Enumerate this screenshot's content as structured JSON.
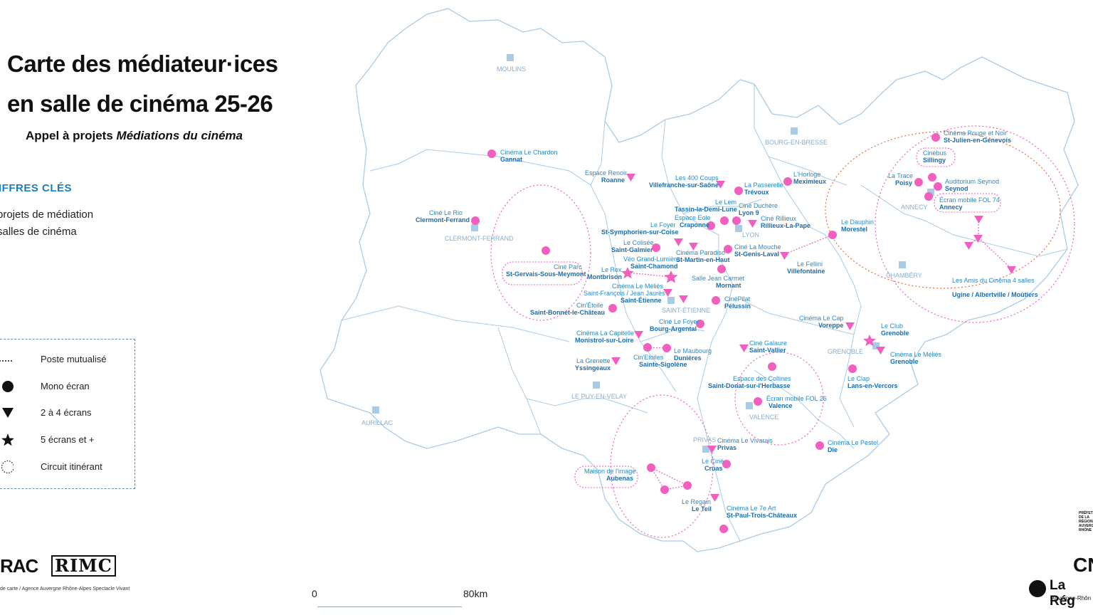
{
  "title_line1": "Carte des médiateur·ices",
  "title_line2": "en salle de cinéma 25-26",
  "subtitle_prefix": "Appel à projets ",
  "subtitle_italic": "Médiations du cinéma",
  "key_figures": {
    "heading": "IFFRES CLÉS",
    "line1": "projets de médiation",
    "line2": "salles de cinéma"
  },
  "legend": {
    "items": [
      {
        "label": "Poste mutualisé",
        "icon": "dotted-line-icon"
      },
      {
        "label": "Mono écran",
        "icon": "circle-icon"
      },
      {
        "label": "2 à 4 écrans",
        "icon": "triangle-icon"
      },
      {
        "label": "5 écrans et +",
        "icon": "star-icon"
      },
      {
        "label": "Circuit itinérant",
        "icon": "dashed-circle-icon"
      }
    ]
  },
  "logos": {
    "rac": "RAC",
    "rmc": "RIMC",
    "cn": "CN",
    "region": "La Rég",
    "region_sub": "Auvergne-Rhôn",
    "prefet": "PRÉFET DE LA RÉGION AUVERGNE RHÔNE"
  },
  "credit": "de carte / Agence Auvergne Rhône-Alpes Spectacle Vivant",
  "scale": {
    "start": "0",
    "end": "80km"
  },
  "colors": {
    "marker": "#f35fbf",
    "border": "#a9cbe6",
    "prefecture": "#a9cbe6",
    "label_name": "#2a8ac9",
    "label_city": "#1a6eb0"
  },
  "prefectures": [
    "MOULINS",
    "BOURG-EN-BRESSE",
    "CLERMONT-FERRAND",
    "LYON",
    "ANNECY",
    "CHAMBÉRY",
    "SAINT-ÉTIENNE",
    "GRENOBLE",
    "LE PUY-EN-VELAY",
    "AURILLAC",
    "VALENCE",
    "PRIVAS"
  ],
  "venues": [
    {
      "name": "Cinéma Le Chardon",
      "city": "Gannat",
      "marker": "circle"
    },
    {
      "name": "Ciné Le Rio",
      "city": "Clermont-Ferrand",
      "marker": "circle"
    },
    {
      "name": "Ciné Parc",
      "city": "St-Gervais-Sous-Meymont",
      "marker": "circle"
    },
    {
      "name": "Espace Renoir",
      "city": "Roanne",
      "marker": "triangle"
    },
    {
      "name": "Les 400 Coups",
      "city": "Villefranche-sur-Saône",
      "marker": "triangle"
    },
    {
      "name": "La Passerelle",
      "city": "Trévoux",
      "marker": "circle"
    },
    {
      "name": "L'Horloge",
      "city": "Meximieux",
      "marker": "circle"
    },
    {
      "name": "Le Lem",
      "city": "Tassin-la-Demi-Lune",
      "marker": "circle"
    },
    {
      "name": "Ciné Duchère",
      "city": "Lyon 9",
      "marker": "circle"
    },
    {
      "name": "Espace Eole",
      "city": "Craponne",
      "marker": "circle"
    },
    {
      "name": "Ciné Rillieux",
      "city": "Rillieux-La-Pape",
      "marker": "triangle"
    },
    {
      "name": "Le Foyer",
      "city": "St-Symphorien-sur-Coise",
      "marker": "triangle"
    },
    {
      "name": "Le Colisée",
      "city": "Saint-Galmier",
      "marker": "circle"
    },
    {
      "name": "Ciné La Mouche",
      "city": "St-Genis-Laval",
      "marker": "circle"
    },
    {
      "name": "Cinéma Paradiso",
      "city": "St-Martin-en-Haut",
      "marker": "triangle"
    },
    {
      "name": "Véo Grand-Lumière",
      "city": "Saint-Chamond",
      "marker": "star"
    },
    {
      "name": "Le Rex",
      "city": "Montbrison",
      "marker": "star"
    },
    {
      "name": "Le Fellini",
      "city": "Villefontaine",
      "marker": "triangle"
    },
    {
      "name": "Le Dauphin",
      "city": "Morestel",
      "marker": "circle"
    },
    {
      "name": "Salle Jean Carmet",
      "city": "Mornant",
      "marker": "circle"
    },
    {
      "name": "Cinéma Le Méliès",
      "city": "",
      "marker": "triangle"
    },
    {
      "name": "Saint-François / Jean Jaurès",
      "city": "Saint-Étienne",
      "marker": "triangle"
    },
    {
      "name": "Cin'Étoile",
      "city": "Saint-Bonnet-le-Château",
      "marker": "circle"
    },
    {
      "name": "CinéPilat",
      "city": "Pélussin",
      "marker": "circle"
    },
    {
      "name": "Ciné Le Foyer",
      "city": "Bourg-Argental",
      "marker": "circle"
    },
    {
      "name": "Cinéma La Capitelle",
      "city": "Monistrol-sur-Loire",
      "marker": "triangle"
    },
    {
      "name": "La Grenette",
      "city": "Yssingeaux",
      "marker": "triangle"
    },
    {
      "name": "Cin'Etoiles",
      "city": "Sainte-Sigolène",
      "marker": "circle"
    },
    {
      "name": "Le Maubourg",
      "city": "Dunières",
      "marker": "circle"
    },
    {
      "name": "Ciné Galaure",
      "city": "Saint-Vallier",
      "marker": "triangle"
    },
    {
      "name": "Espace des Collines",
      "city": "Saint-Donat-sur-l'Herbasse",
      "marker": "circle"
    },
    {
      "name": "Écran mobile FOL 26",
      "city": "Valence",
      "marker": "circle"
    },
    {
      "name": "Cinéma Le Cap",
      "city": "Voreppe",
      "marker": "triangle"
    },
    {
      "name": "Le Club",
      "city": "Grenoble",
      "marker": "star"
    },
    {
      "name": "Cinéma Le Méliès",
      "city": "Grenoble",
      "marker": "triangle"
    },
    {
      "name": "Le Clap",
      "city": "Lans-en-Vercors",
      "marker": "circle"
    },
    {
      "name": "Cinéma Le Pestel",
      "city": "Die",
      "marker": "circle"
    },
    {
      "name": "Cinéma Le Vivarais",
      "city": "Privas",
      "marker": "triangle"
    },
    {
      "name": "Le Ciné",
      "city": "Cruas",
      "marker": "circle"
    },
    {
      "name": "Maison de l'image",
      "city": "Aubenas",
      "marker": "circle"
    },
    {
      "name": "Le Regain",
      "city": "Le Teil",
      "marker": "triangle"
    },
    {
      "name": "Cinéma Le 7e Art",
      "city": "St-Paul-Trois-Châteaux",
      "marker": "circle"
    },
    {
      "name": "Cinéma Rouge et Noir",
      "city": "St-Julien-en-Genevois",
      "marker": "circle"
    },
    {
      "name": "Cinébus",
      "city": "Sillingy",
      "marker": "circle"
    },
    {
      "name": "La Trace",
      "city": "Poisy",
      "marker": "circle"
    },
    {
      "name": "Auditorium Seynod",
      "city": "Seynod",
      "marker": "circle"
    },
    {
      "name": "Écran mobile FOL 74",
      "city": "Annecy",
      "marker": "circle"
    },
    {
      "name": "Les Amis du Cinéma 4 salles",
      "city": "Ugine / Albertville / Moûtiers",
      "marker": "triangle"
    }
  ]
}
